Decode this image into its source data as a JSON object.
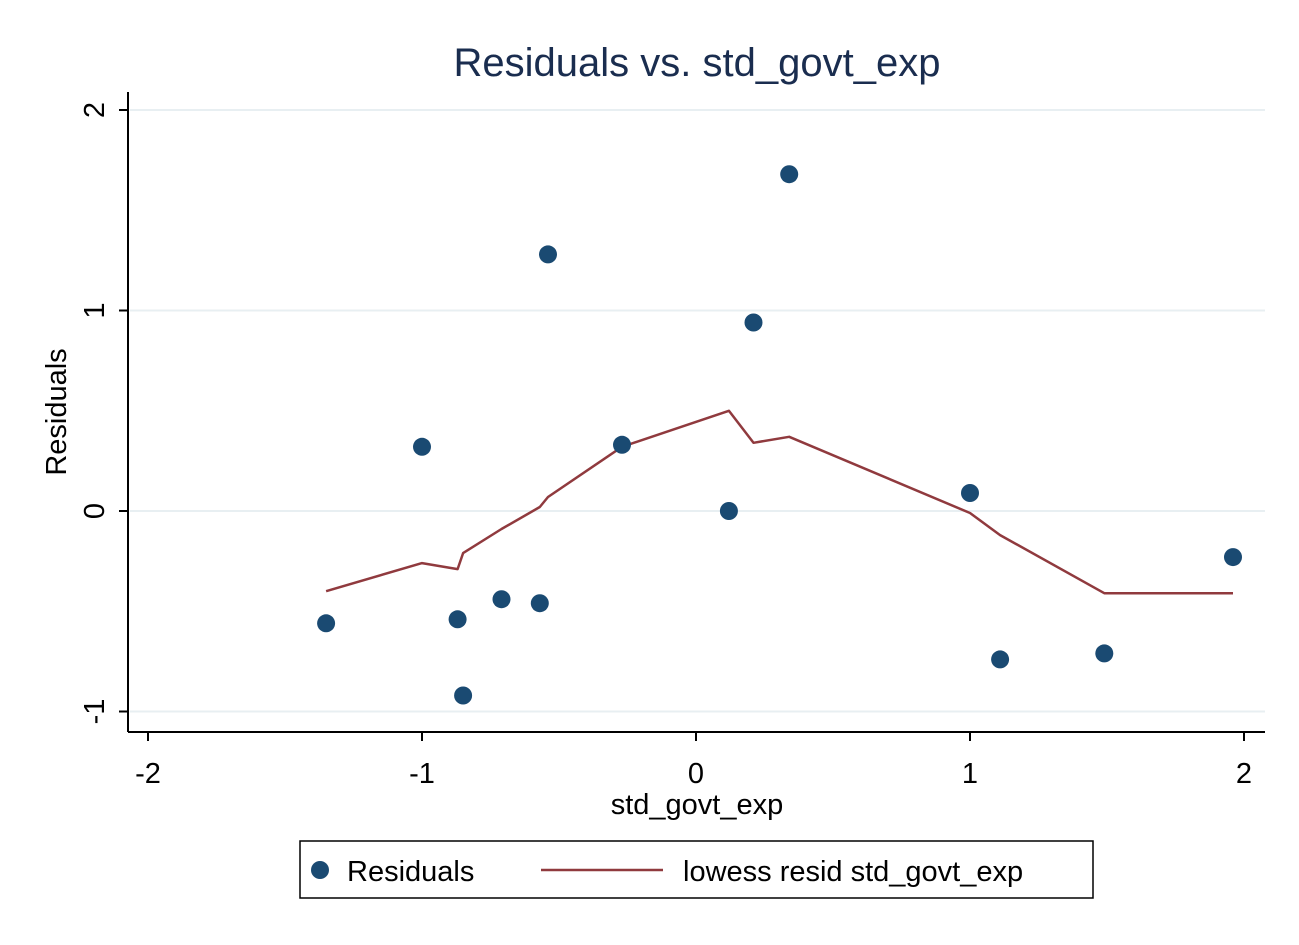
{
  "chart_data": {
    "type": "scatter",
    "title": "Residuals vs. std_govt_exp",
    "xlabel": "std_govt_exp",
    "ylabel": "Residuals",
    "xlim": [
      -2.08,
      2.08
    ],
    "ylim": [
      -1.1,
      2.1
    ],
    "xticks": [
      -2,
      -1,
      0,
      1,
      2
    ],
    "yticks": [
      -1,
      0,
      1,
      2
    ],
    "grid": "horizontal",
    "legend_position": "bottom",
    "colors": {
      "points": "#1a4a72",
      "line": "#903a3e",
      "grid": "#e8eff2",
      "title": "#1a2d4f"
    },
    "series": [
      {
        "name": "Residuals",
        "kind": "scatter",
        "x": [
          -1.35,
          -1.0,
          -0.87,
          -0.85,
          -0.71,
          -0.57,
          -0.54,
          -0.27,
          0.12,
          0.21,
          0.34,
          1.0,
          1.11,
          1.49,
          1.96
        ],
        "y": [
          -0.56,
          0.32,
          -0.54,
          -0.92,
          -0.44,
          -0.46,
          1.28,
          0.33,
          0.0,
          0.94,
          1.68,
          0.09,
          -0.74,
          -0.71,
          -0.23
        ]
      },
      {
        "name": "lowess resid std_govt_exp",
        "kind": "line",
        "x": [
          -1.35,
          -1.0,
          -0.87,
          -0.85,
          -0.71,
          -0.57,
          -0.54,
          -0.27,
          0.12,
          0.21,
          0.34,
          1.0,
          1.11,
          1.49,
          1.96
        ],
        "y": [
          -0.4,
          -0.26,
          -0.29,
          -0.21,
          -0.09,
          0.02,
          0.07,
          0.32,
          0.5,
          0.34,
          0.37,
          -0.01,
          -0.12,
          -0.41,
          -0.41
        ]
      }
    ]
  }
}
